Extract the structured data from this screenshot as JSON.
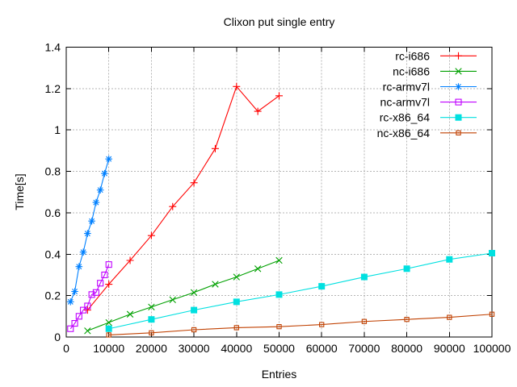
{
  "chart_data": {
    "type": "line",
    "title": "Clixon put single entry",
    "xlabel": "Entries",
    "ylabel": "Time[s]",
    "xlim": [
      0,
      100000
    ],
    "ylim": [
      0,
      1.4
    ],
    "x_ticks": [
      0,
      10000,
      20000,
      30000,
      40000,
      50000,
      60000,
      70000,
      80000,
      90000,
      100000
    ],
    "x_tick_labels": [
      "0",
      "10000",
      "20000",
      "30000",
      "40000",
      "50000",
      "60000",
      "70000",
      "80000",
      "90000",
      "100000"
    ],
    "y_ticks": [
      0,
      0.2,
      0.4,
      0.6,
      0.8,
      1.0,
      1.2,
      1.4
    ],
    "y_tick_labels": [
      "0",
      "0.2",
      "0.4",
      "0.6",
      "0.8",
      "1",
      "1.2",
      "1.4"
    ],
    "grid": true,
    "legend_position": "top-right-inside",
    "background_color": "#ffffff",
    "border_color": "#000000",
    "grid_color": "#b5b5b5",
    "series": [
      {
        "name": "rc-i686",
        "color": "#ff0000",
        "marker": "plus",
        "x": [
          5000,
          10000,
          15000,
          20000,
          25000,
          30000,
          35000,
          40000,
          45000,
          50000
        ],
        "y": [
          0.13,
          0.255,
          0.37,
          0.49,
          0.63,
          0.745,
          0.91,
          1.21,
          1.09,
          1.165
        ]
      },
      {
        "name": "nc-i686",
        "color": "#00a000",
        "marker": "cross",
        "x": [
          5000,
          10000,
          15000,
          20000,
          25000,
          30000,
          35000,
          40000,
          45000,
          50000
        ],
        "y": [
          0.03,
          0.07,
          0.11,
          0.145,
          0.18,
          0.215,
          0.255,
          0.29,
          0.33,
          0.37
        ]
      },
      {
        "name": "rc-armv7l",
        "color": "#0080ff",
        "marker": "asterisk",
        "x": [
          1000,
          2000,
          3000,
          4000,
          5000,
          6000,
          7000,
          8000,
          9000,
          10000
        ],
        "y": [
          0.17,
          0.22,
          0.34,
          0.41,
          0.5,
          0.56,
          0.65,
          0.71,
          0.79,
          0.86
        ]
      },
      {
        "name": "nc-armv7l",
        "color": "#c000ff",
        "marker": "open-square",
        "x": [
          1000,
          2000,
          3000,
          4000,
          5000,
          6000,
          7000,
          8000,
          9000,
          10000
        ],
        "y": [
          0.04,
          0.066,
          0.1,
          0.13,
          0.15,
          0.205,
          0.215,
          0.26,
          0.3,
          0.35
        ]
      },
      {
        "name": "rc-x86_64",
        "color": "#00e0e0",
        "marker": "filled-square",
        "x": [
          10000,
          20000,
          30000,
          40000,
          50000,
          60000,
          70000,
          80000,
          90000,
          100000
        ],
        "y": [
          0.04,
          0.085,
          0.13,
          0.17,
          0.205,
          0.245,
          0.29,
          0.33,
          0.375,
          0.405
        ]
      },
      {
        "name": "nc-x86_64",
        "color": "#c04000",
        "marker": "dot-square",
        "x": [
          10000,
          20000,
          30000,
          40000,
          50000,
          60000,
          70000,
          80000,
          90000,
          100000
        ],
        "y": [
          0.01,
          0.02,
          0.035,
          0.045,
          0.05,
          0.06,
          0.075,
          0.085,
          0.095,
          0.11
        ]
      }
    ]
  }
}
